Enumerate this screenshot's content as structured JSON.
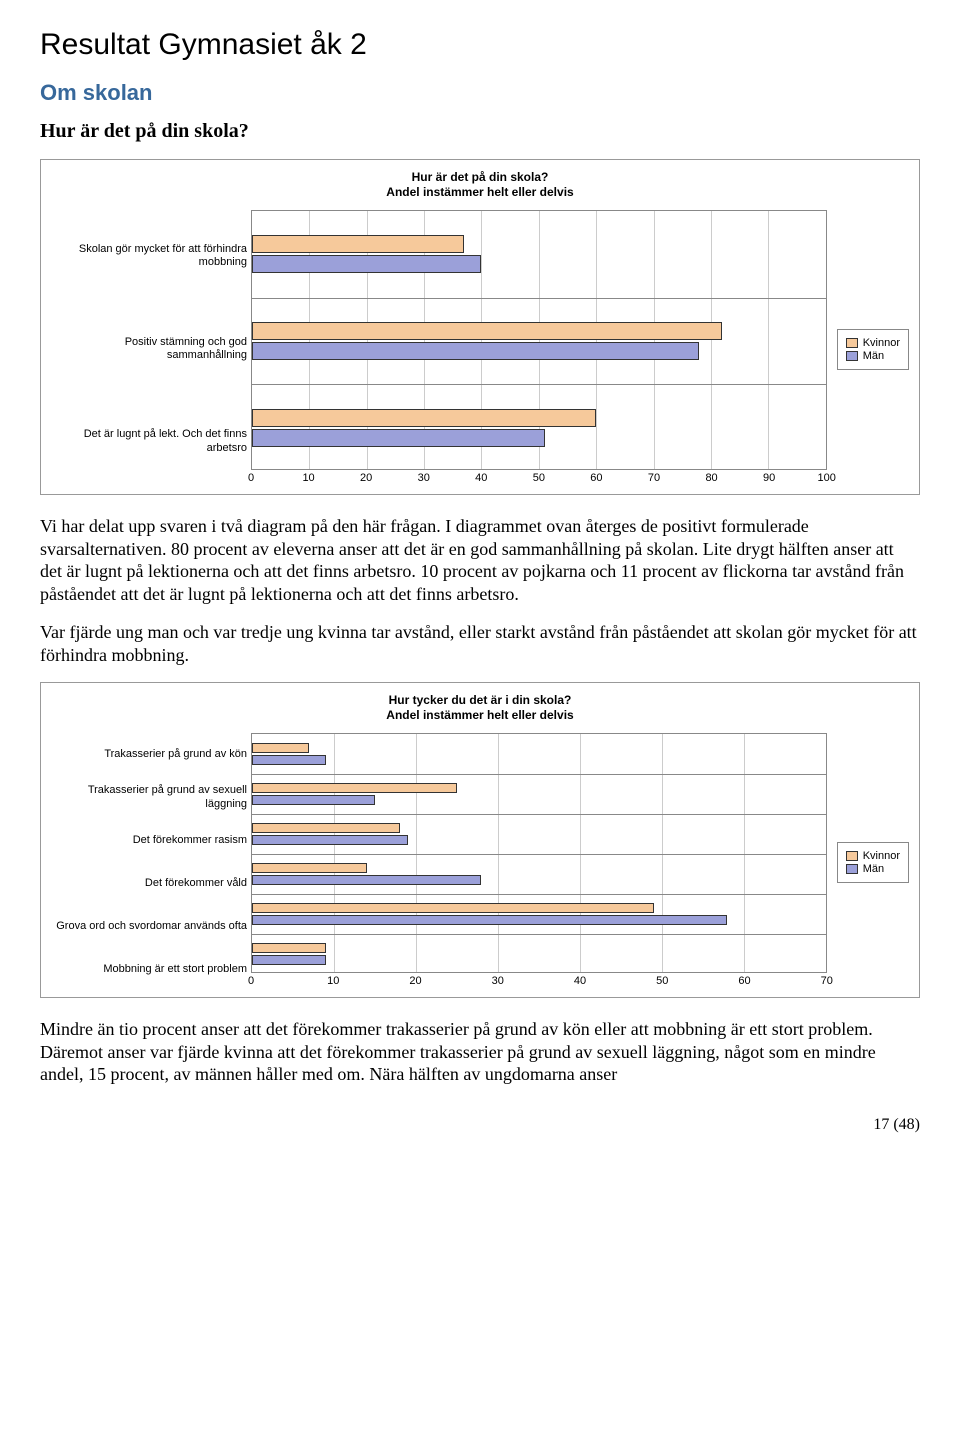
{
  "heading_main": "Resultat Gymnasiet åk 2",
  "heading_section": "Om skolan",
  "heading_sub": "Hur är det på din skola?",
  "legend": {
    "kvinnor": "Kvinnor",
    "man": "Män"
  },
  "colors": {
    "kvinnor": "#f6c99b",
    "man": "#9ba0d9",
    "border": "#333333",
    "grid": "#cccccc"
  },
  "chart1": {
    "title_line1": "Hur är det på din skola?",
    "title_line2": "Andel instämmer helt eller delvis",
    "xmin": 0,
    "xmax": 100,
    "tick_step": 10,
    "ticks": [
      0,
      10,
      20,
      30,
      40,
      50,
      60,
      70,
      80,
      90,
      100
    ],
    "categories": [
      {
        "label": "Skolan gör mycket för att förhindra mobbning",
        "kvinnor": 37,
        "man": 40
      },
      {
        "label": "Positiv stämning och god sammanhållning",
        "kvinnor": 82,
        "man": 78
      },
      {
        "label": "Det är lugnt på lekt. Och det finns arbetsro",
        "kvinnor": 60,
        "man": 51
      }
    ]
  },
  "para1": "Vi har delat upp svaren i två diagram på den här frågan. I diagrammet ovan återges de positivt formulerade svarsalternativen. 80 procent av eleverna anser att det är en god sammanhållning på skolan. Lite drygt hälften anser att det är lugnt på lektionerna och att det finns arbetsro. 10 procent av pojkarna och 11 procent av flickorna tar avstånd från påståendet att det är lugnt på lektionerna och att det finns arbetsro.",
  "para2": "Var fjärde ung man och var tredje ung kvinna tar avstånd, eller starkt avstånd från påståendet att skolan gör mycket för att förhindra mobbning.",
  "chart2": {
    "title_line1": "Hur tycker du det är i din skola?",
    "title_line2": "Andel instämmer helt eller delvis",
    "xmin": 0,
    "xmax": 70,
    "tick_step": 10,
    "ticks": [
      0,
      10,
      20,
      30,
      40,
      50,
      60,
      70
    ],
    "categories": [
      {
        "label": "Trakasserier på grund av kön",
        "kvinnor": 7,
        "man": 9
      },
      {
        "label": "Trakasserier på grund av sexuell läggning",
        "kvinnor": 25,
        "man": 15
      },
      {
        "label": "Det förekommer rasism",
        "kvinnor": 18,
        "man": 19
      },
      {
        "label": "Det förekommer våld",
        "kvinnor": 14,
        "man": 28
      },
      {
        "label": "Grova ord och svordomar används ofta",
        "kvinnor": 49,
        "man": 58
      },
      {
        "label": "Mobbning är ett stort problem",
        "kvinnor": 9,
        "man": 9
      }
    ]
  },
  "para3": "Mindre än tio procent anser att det förekommer trakasserier på grund av kön eller att mobbning är ett stort problem. Däremot anser var fjärde kvinna att det förekommer trakasserier på grund av sexuell läggning, något som en mindre andel, 15 procent, av männen håller med om. Nära hälften av ungdomarna anser",
  "page_number": "17 (48)"
}
